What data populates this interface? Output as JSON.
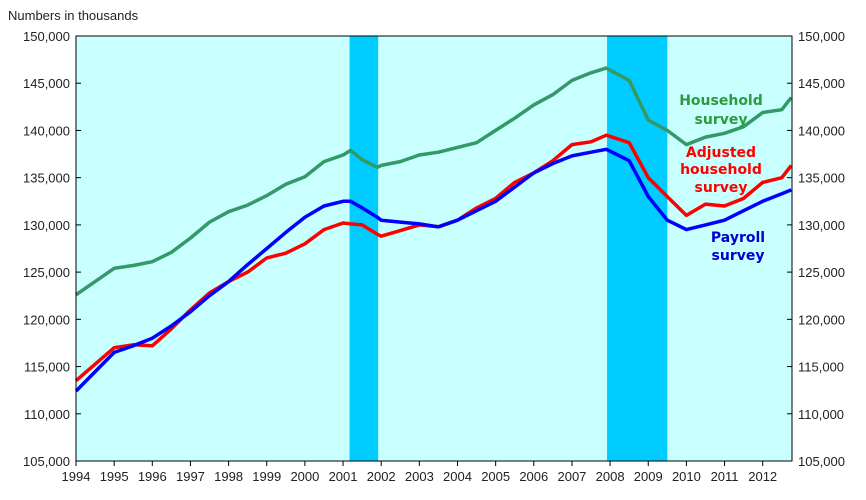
{
  "chart_data": {
    "type": "line",
    "title": "",
    "ylabel": "Numbers in thousands",
    "xlabel": "",
    "ylim": [
      105000,
      150000
    ],
    "xlim": [
      1994,
      2012.75
    ],
    "y_ticks": [
      "105,000",
      "110,000",
      "115,000",
      "120,000",
      "125,000",
      "130,000",
      "135,000",
      "140,000",
      "145,000",
      "150,000"
    ],
    "x_ticks": [
      "1994",
      "1995",
      "1996",
      "1997",
      "1998",
      "1999",
      "2000",
      "2001",
      "2002",
      "2003",
      "2004",
      "2005",
      "2006",
      "2007",
      "2008",
      "2009",
      "2010",
      "2011",
      "2012"
    ],
    "grid": false,
    "recession_shading": [
      [
        2001.17,
        2001.92
      ],
      [
        2007.92,
        2009.5
      ]
    ],
    "colors": {
      "background": "#c8ffff",
      "recession": "#00ccff",
      "household": "#339966",
      "adjusted": "#ff0000",
      "payroll": "#0000ff"
    },
    "x": [
      1994,
      1995,
      1995.5,
      1996,
      1996.5,
      1997,
      1997.5,
      1998,
      1998.5,
      1999,
      1999.5,
      2000,
      2000.5,
      2001,
      2001.2,
      2001.5,
      2001.9,
      2002,
      2002.5,
      2003,
      2003.5,
      2004,
      2004.5,
      2005,
      2005.5,
      2006,
      2006.5,
      2007,
      2007.5,
      2007.9,
      2008.5,
      2009,
      2009.5,
      2010,
      2010.5,
      2011,
      2011.5,
      2012,
      2012.5,
      2012.75
    ],
    "series": [
      {
        "name": "Household survey",
        "key": "household",
        "values": [
          122600,
          125400,
          125700,
          126100,
          127100,
          128600,
          130300,
          131400,
          132100,
          133100,
          134300,
          135100,
          136700,
          137400,
          137900,
          136900,
          136100,
          136300,
          136700,
          137400,
          137700,
          138200,
          138700,
          140000,
          141300,
          142700,
          143800,
          145300,
          146100,
          146600,
          145300,
          141100,
          140000,
          138500,
          139300,
          139700,
          140400,
          141900,
          142200,
          143500
        ]
      },
      {
        "name": "Adjusted household survey",
        "key": "adjusted",
        "values": [
          113500,
          117000,
          117300,
          117200,
          119000,
          121000,
          122800,
          124000,
          125000,
          126500,
          127000,
          128000,
          129500,
          130200,
          130100,
          130000,
          129000,
          128800,
          129400,
          130000,
          129800,
          130500,
          131800,
          132800,
          134500,
          135500,
          136800,
          138500,
          138800,
          139500,
          138700,
          135000,
          133000,
          131000,
          132200,
          132000,
          132800,
          134500,
          135000,
          136300
        ]
      },
      {
        "name": "Payroll survey",
        "key": "payroll",
        "values": [
          112400,
          116500,
          117200,
          118000,
          119300,
          120800,
          122500,
          124000,
          125800,
          127500,
          129200,
          130800,
          132000,
          132500,
          132500,
          131800,
          130800,
          130500,
          130300,
          130100,
          129800,
          130500,
          131500,
          132500,
          134000,
          135500,
          136500,
          137300,
          137700,
          138000,
          136800,
          133000,
          130500,
          129500,
          130000,
          130500,
          131500,
          132500,
          133300,
          133700
        ]
      }
    ],
    "annotations": {
      "household": [
        "Household",
        "survey"
      ],
      "adjusted": [
        "Adjusted",
        "household",
        "survey"
      ],
      "payroll": [
        "Payroll",
        "survey"
      ]
    }
  }
}
